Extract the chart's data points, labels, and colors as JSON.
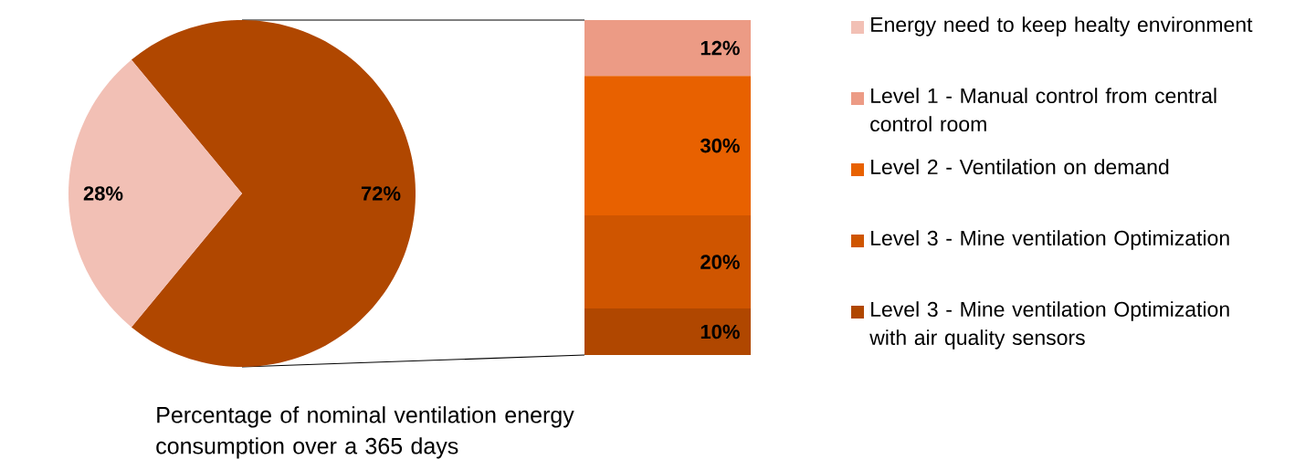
{
  "chart_data": [
    {
      "type": "pie",
      "title": "Percentage of nominal ventilation energy consumption over a 365 days",
      "categories": [
        "Energy need to keep healty environment",
        null
      ],
      "values": [
        28,
        72
      ],
      "colors": [
        "#f2c0b5",
        "#b04700"
      ],
      "value_labels": [
        "28%",
        "72%"
      ],
      "legend": "right"
    },
    {
      "type": "bar",
      "stacked": true,
      "categories": [
        null
      ],
      "legend": "right",
      "series": [
        {
          "name": "Level 3 - Mine ventilation Optimization with air quality sensors",
          "color": "#b04700",
          "values": [
            10
          ],
          "value_labels": [
            "10%"
          ]
        },
        {
          "name": "Level 3 - Mine ventilation Optimization",
          "color": "#cf5500",
          "values": [
            20
          ],
          "value_labels": [
            "20%"
          ]
        },
        {
          "name": "Level 2 - Ventilation on demand",
          "color": "#e86100",
          "values": [
            30
          ],
          "value_labels": [
            "30%"
          ]
        },
        {
          "name": "Level 1 - Manual control from central control room",
          "color": "#ec9b85",
          "values": [
            12
          ],
          "value_labels": [
            "12%"
          ]
        }
      ]
    }
  ]
}
